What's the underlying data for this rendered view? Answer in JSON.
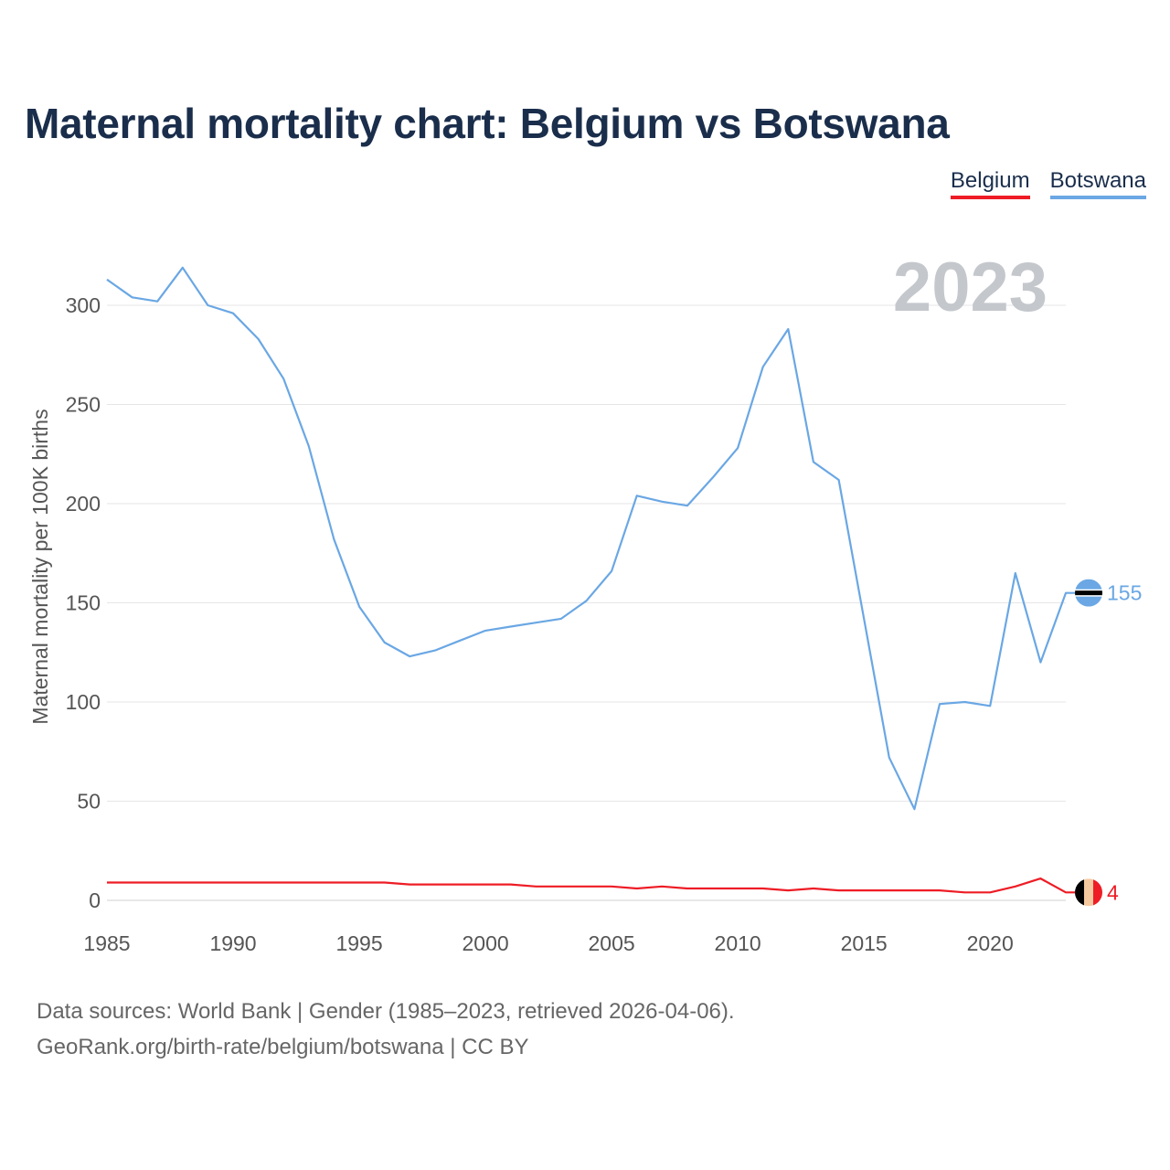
{
  "title": "Maternal mortality chart: Belgium vs Botswana",
  "legend": {
    "belgium": "Belgium",
    "botswana": "Botswana"
  },
  "sources": {
    "line1": "Data sources: World Bank | Gender (1985–2023, retrieved 2026-04-06).",
    "line2": "GeoRank.org/birth-rate/belgium/botswana | CC BY"
  },
  "colors": {
    "belgium": "#ee1c25",
    "botswana": "#6aa7e4",
    "title": "#1a2e4c",
    "year": "#c4c7cc"
  },
  "chart_data": {
    "type": "line",
    "title": "Maternal mortality chart: Belgium vs Botswana",
    "xlabel": "",
    "ylabel": "Maternal mortality per 100K births",
    "year_label": "2023",
    "xlim": [
      1985,
      2023
    ],
    "ylim": [
      0,
      320
    ],
    "xticks": [
      1985,
      1990,
      1995,
      2000,
      2005,
      2010,
      2015,
      2020
    ],
    "yticks": [
      0,
      50,
      100,
      150,
      200,
      250,
      300
    ],
    "x": [
      1985,
      1986,
      1987,
      1988,
      1989,
      1990,
      1991,
      1992,
      1993,
      1994,
      1995,
      1996,
      1997,
      1998,
      1999,
      2000,
      2001,
      2002,
      2003,
      2004,
      2005,
      2006,
      2007,
      2008,
      2009,
      2010,
      2011,
      2012,
      2013,
      2014,
      2015,
      2016,
      2017,
      2018,
      2019,
      2020,
      2021,
      2022,
      2023
    ],
    "series": [
      {
        "name": "Belgium",
        "color": "#ee1c25",
        "end_value": "4",
        "flag": "belgium-flag",
        "values": [
          9,
          9,
          9,
          9,
          9,
          9,
          9,
          9,
          9,
          9,
          9,
          9,
          8,
          8,
          8,
          8,
          8,
          7,
          7,
          7,
          7,
          6,
          7,
          6,
          6,
          6,
          6,
          5,
          6,
          5,
          5,
          5,
          5,
          5,
          4,
          4,
          7,
          11,
          4
        ]
      },
      {
        "name": "Botswana",
        "color": "#6aa7e4",
        "end_value": "155",
        "flag": "botswana-flag",
        "values": [
          313,
          304,
          302,
          319,
          300,
          296,
          283,
          263,
          229,
          182,
          148,
          130,
          123,
          126,
          131,
          136,
          138,
          140,
          142,
          151,
          166,
          204,
          201,
          199,
          213,
          228,
          269,
          288,
          221,
          212,
          142,
          72,
          46,
          99,
          100,
          98,
          165,
          120,
          155
        ]
      }
    ]
  }
}
